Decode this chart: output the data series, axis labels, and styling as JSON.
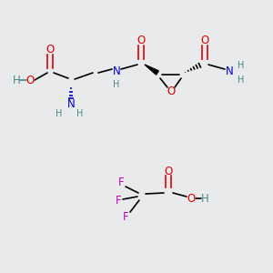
{
  "bg_color": "#e8eaeb",
  "atom_colors": {
    "O": "#e00000",
    "N": "#0000cc",
    "H": "#4a8888",
    "C": "#000000",
    "F": "#cc00bb"
  },
  "fig_size": [
    3.0,
    3.0
  ],
  "dpi": 100
}
